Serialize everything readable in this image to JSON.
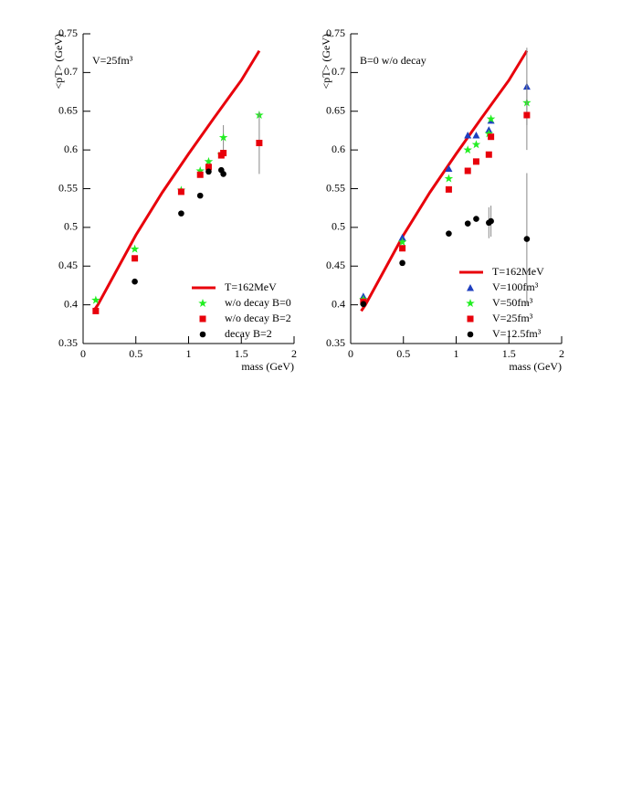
{
  "chart_data": [
    {
      "type": "scatter",
      "annotation": "V=25fm³",
      "ylabel": "<pT> (GeV)",
      "xlabel": "mass (GeV)",
      "xlim": [
        0,
        2
      ],
      "ylim": [
        0.35,
        0.75
      ],
      "xticks": [
        0,
        0.5,
        1,
        1.5,
        2
      ],
      "yticks": [
        0.35,
        0.4,
        0.45,
        0.5,
        0.55,
        0.6,
        0.65,
        0.7,
        0.75
      ],
      "legend": "lower right",
      "series": [
        {
          "name": "T=162MeV",
          "color": "#e8000b",
          "marker": "line",
          "x": [
            0.1,
            0.14,
            0.3,
            0.5,
            0.75,
            1.0,
            1.25,
            1.5,
            1.67
          ],
          "values": [
            0.392,
            0.4,
            0.44,
            0.49,
            0.545,
            0.595,
            0.643,
            0.69,
            0.728
          ]
        },
        {
          "name": "w/o decay B=0",
          "color": "#22ee22",
          "marker": "star",
          "x": [
            0.12,
            0.49,
            0.93,
            1.11,
            1.19,
            1.31,
            1.33,
            1.67
          ],
          "values": [
            0.406,
            0.472,
            0.548,
            0.573,
            0.585,
            0.594,
            0.616,
            0.645
          ],
          "errors": [
            null,
            null,
            null,
            null,
            null,
            null,
            0.016,
            null
          ]
        },
        {
          "name": "w/o decay B=2",
          "color": "#e8000b",
          "marker": "square",
          "x": [
            0.12,
            0.49,
            0.93,
            1.11,
            1.19,
            1.31,
            1.33,
            1.67
          ],
          "values": [
            0.392,
            0.46,
            0.546,
            0.568,
            0.578,
            0.593,
            0.596,
            0.609
          ],
          "errors": [
            null,
            null,
            null,
            null,
            null,
            null,
            null,
            0.04
          ]
        },
        {
          "name": "decay B=2",
          "color": "#000000",
          "marker": "circle",
          "x": [
            0.49,
            0.93,
            1.11,
            1.19,
            1.31,
            1.33
          ],
          "values": [
            0.43,
            0.518,
            0.541,
            0.572,
            0.574,
            0.569
          ]
        }
      ]
    },
    {
      "type": "scatter",
      "annotation": "B=0   w/o decay",
      "ylabel": "<pT> (GeV)",
      "xlabel": "mass (GeV)",
      "xlim": [
        0,
        2
      ],
      "ylim": [
        0.35,
        0.75
      ],
      "xticks": [
        0,
        0.5,
        1,
        1.5,
        2
      ],
      "yticks": [
        0.35,
        0.4,
        0.45,
        0.5,
        0.55,
        0.6,
        0.65,
        0.7,
        0.75
      ],
      "legend": "lower right",
      "series": [
        {
          "name": "T=162MeV",
          "color": "#e8000b",
          "marker": "line",
          "x": [
            0.1,
            0.14,
            0.3,
            0.5,
            0.75,
            1.0,
            1.25,
            1.5,
            1.67
          ],
          "values": [
            0.392,
            0.4,
            0.44,
            0.49,
            0.545,
            0.595,
            0.643,
            0.69,
            0.728
          ]
        },
        {
          "name": "V=100fm³",
          "color": "#1f3fbf",
          "marker": "triangle",
          "x": [
            0.12,
            0.49,
            0.93,
            1.11,
            1.19,
            1.31,
            1.33,
            1.67
          ],
          "values": [
            0.411,
            0.487,
            0.576,
            0.619,
            0.619,
            0.626,
            0.638,
            0.682
          ],
          "errors": [
            null,
            null,
            null,
            null,
            null,
            null,
            null,
            0.05
          ]
        },
        {
          "name": "V=50fm³",
          "color": "#22ee22",
          "marker": "star",
          "x": [
            0.12,
            0.49,
            0.93,
            1.11,
            1.19,
            1.31,
            1.33,
            1.67
          ],
          "values": [
            0.407,
            0.481,
            0.563,
            0.6,
            0.607,
            0.621,
            0.64,
            0.661
          ]
        },
        {
          "name": "V=25fm³",
          "color": "#e8000b",
          "marker": "square",
          "x": [
            0.12,
            0.49,
            0.93,
            1.11,
            1.19,
            1.31,
            1.33,
            1.67
          ],
          "values": [
            0.404,
            0.473,
            0.549,
            0.573,
            0.585,
            0.594,
            0.617,
            0.645
          ],
          "errors": [
            null,
            null,
            null,
            null,
            null,
            null,
            null,
            0.045
          ]
        },
        {
          "name": "V=12.5fm³",
          "color": "#000000",
          "marker": "circle",
          "x": [
            0.12,
            0.49,
            0.93,
            1.11,
            1.19,
            1.31,
            1.33,
            1.67
          ],
          "values": [
            0.401,
            0.454,
            0.492,
            0.505,
            0.511,
            0.506,
            0.508,
            0.485
          ],
          "errors": [
            null,
            null,
            null,
            null,
            null,
            0.02,
            0.02,
            0.085
          ]
        }
      ]
    }
  ]
}
